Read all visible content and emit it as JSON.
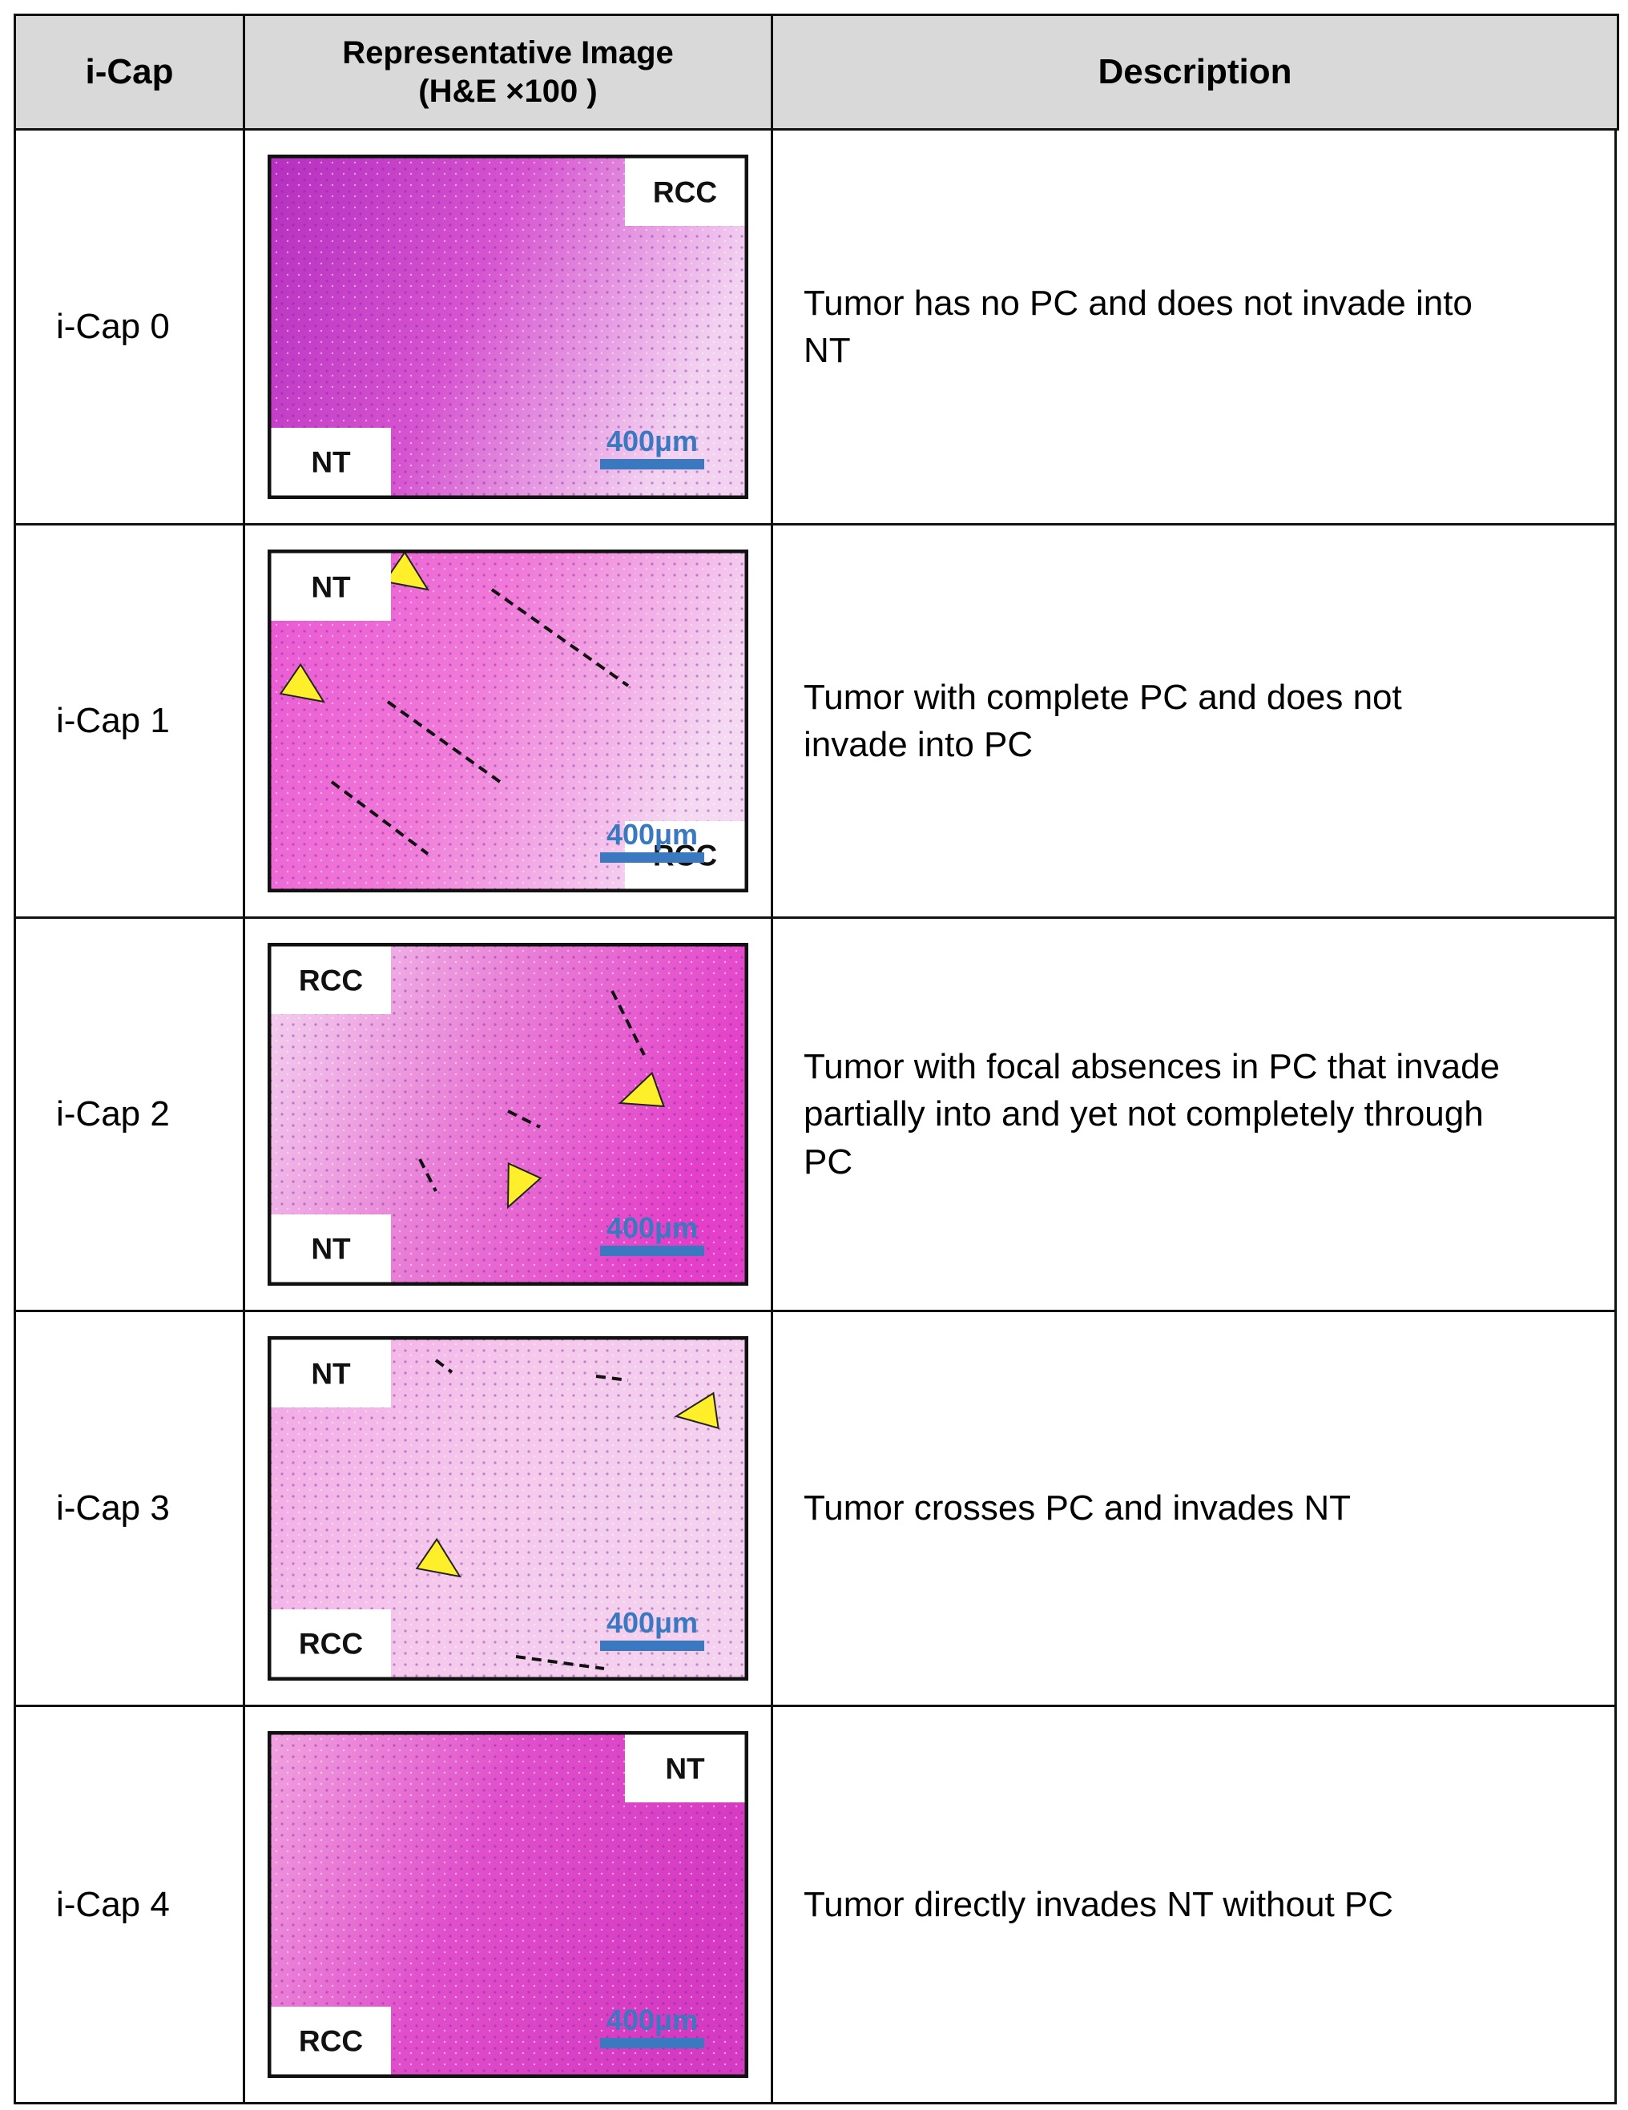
{
  "header": [
    [
      "i-Cap"
    ],
    [
      "Representative Image",
      "(H&E ×100 )"
    ],
    [
      "Description"
    ]
  ],
  "rows": [
    {
      "label": "i-Cap 0",
      "image": {
        "labels": [
          "RCC",
          "NT"
        ],
        "scale": "400μm"
      },
      "description": "Tumor has no PC and does not invade into NT"
    },
    {
      "label": "i-Cap 1",
      "image": {
        "labels": [
          "NT",
          "RCC"
        ],
        "scale": "400μm"
      },
      "description": "Tumor with complete PC and does not invade into PC"
    },
    {
      "label": "i-Cap 2",
      "image": {
        "labels": [
          "RCC",
          "NT"
        ],
        "scale": "400μm"
      },
      "description": "Tumor with focal absences in PC that invade partially into and yet not completely through PC"
    },
    {
      "label": "i-Cap 3",
      "image": {
        "labels": [
          "NT",
          "RCC"
        ],
        "scale": "400μm"
      },
      "description": "Tumor crosses PC and invades NT"
    },
    {
      "label": "i-Cap 4",
      "image": {
        "labels": [
          "NT",
          "RCC"
        ],
        "scale": "400μm"
      },
      "description": "Tumor directly invades NT without PC"
    }
  ]
}
